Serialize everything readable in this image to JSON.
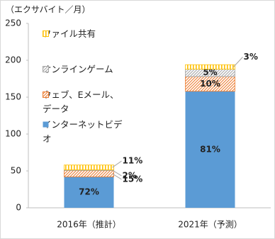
{
  "chart_data": {
    "type": "stacked_bar",
    "y_axis_label": "（エクサバイト／月）",
    "categories": [
      "2016年（推計）",
      "2021年（予測）"
    ],
    "ylim": [
      0,
      250
    ],
    "yticks": [
      0,
      50,
      100,
      150,
      200,
      250
    ],
    "series": [
      {
        "name": "インターネットビデオ",
        "color": "#5b9bd5",
        "pattern": "solid",
        "values": [
          42,
          158
        ],
        "share_labels": [
          "72%",
          "81%"
        ]
      },
      {
        "name": "ウェブ、Eメール、データ",
        "color": "#ed7d31",
        "pattern": "diagonal",
        "values": [
          8.5,
          20
        ],
        "share_labels": [
          "15%",
          "10%"
        ]
      },
      {
        "name": "オンラインゲーム",
        "color": "#a5a5a5",
        "pattern": "diagonal",
        "values": [
          1,
          10
        ],
        "share_labels": [
          "2%",
          "5%"
        ]
      },
      {
        "name": "ファイル共有",
        "color": "#ffc000",
        "pattern": "vertical",
        "values": [
          6.5,
          6
        ],
        "share_labels": [
          "11%",
          "3%"
        ]
      }
    ]
  }
}
